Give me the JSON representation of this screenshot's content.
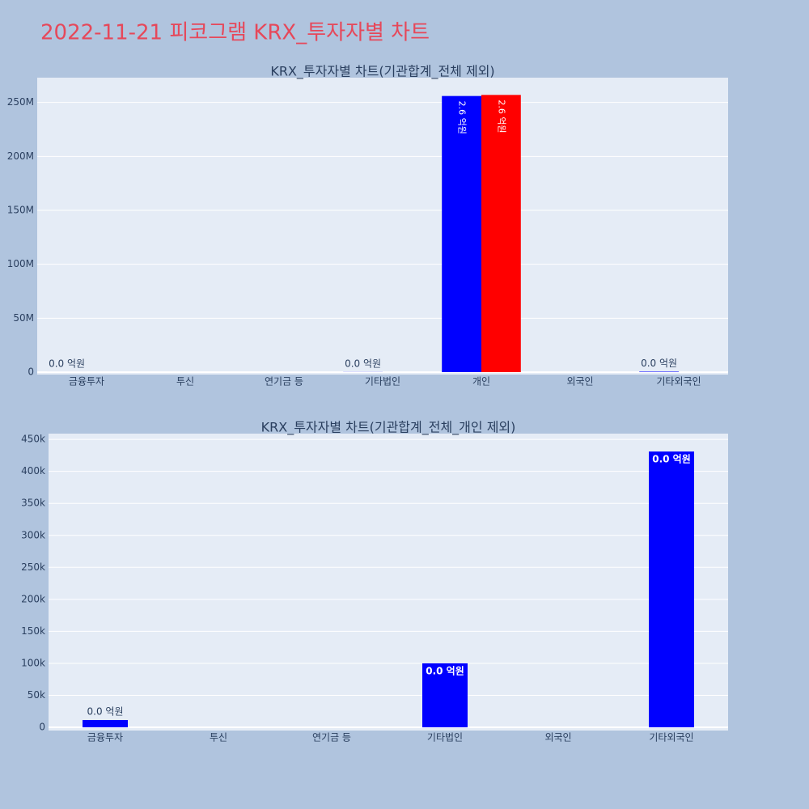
{
  "title": "2022-11-21 피코그램 KRX_투자자별 차트",
  "chart_data": [
    {
      "type": "bar",
      "title": "KRX_투자자별 차트(기관합계_전체 제외)",
      "categories": [
        "금융투자",
        "투신",
        "연기금 등",
        "기타법인",
        "개인",
        "외국인",
        "기타외국인"
      ],
      "series": [
        {
          "color": "#0000ff",
          "values": [
            11400,
            null,
            null,
            100000,
            256000000,
            null,
            431000
          ],
          "value_labels": [
            "0.0 억원",
            null,
            null,
            "0.0 억원",
            "2.6 억원",
            null,
            "0.0 억원"
          ]
        },
        {
          "color": "#ff0000",
          "values": [
            null,
            null,
            null,
            null,
            257000000,
            null,
            null
          ],
          "value_labels": [
            null,
            null,
            null,
            null,
            "2.6 억원",
            null,
            null
          ]
        }
      ],
      "ylim": [
        -2250000,
        273000000
      ],
      "yticks": [
        0,
        {
          "value": 50000000,
          "label": "50M"
        },
        {
          "value": 100000000,
          "label": "100M"
        },
        {
          "value": 150000000,
          "label": "150M"
        },
        {
          "value": 200000000,
          "label": "200M"
        },
        {
          "value": 250000000,
          "label": "250M"
        }
      ],
      "grid": true
    },
    {
      "type": "bar",
      "title": "KRX_투자자별 차트(기관합계_전체_개인 제외)",
      "categories": [
        "금융투자",
        "투신",
        "연기금 등",
        "기타법인",
        "외국인",
        "기타외국인"
      ],
      "series": [
        {
          "color": "#0000ff",
          "values": [
            11400,
            null,
            null,
            100000,
            null,
            431000
          ],
          "value_labels": [
            "0.0 억원",
            null,
            null,
            "0.0 억원",
            null,
            "0.0 억원"
          ]
        }
      ],
      "ylim": [
        -5000,
        459000
      ],
      "yticks": [
        0,
        {
          "value": 50000,
          "label": "50k"
        },
        {
          "value": 100000,
          "label": "100k"
        },
        {
          "value": 150000,
          "label": "150k"
        },
        {
          "value": 200000,
          "label": "200k"
        },
        {
          "value": 250000,
          "label": "250k"
        },
        {
          "value": 300000,
          "label": "300k"
        },
        {
          "value": 350000,
          "label": "350k"
        },
        {
          "value": 400000,
          "label": "400k"
        },
        {
          "value": 450000,
          "label": "450k"
        }
      ],
      "grid": true
    }
  ]
}
